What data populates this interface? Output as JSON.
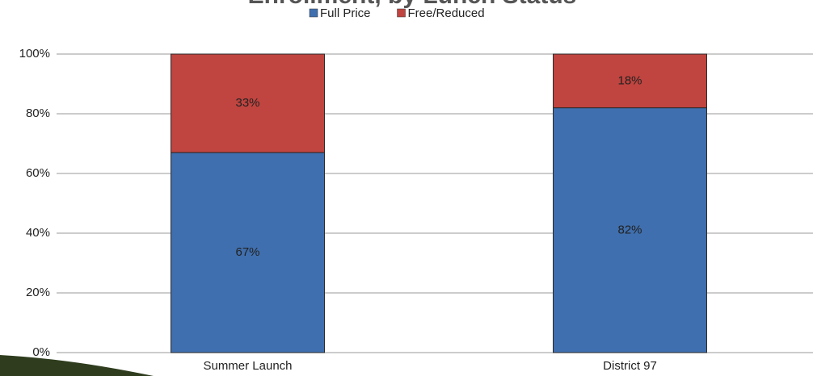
{
  "chart_data": {
    "type": "stacked_bar",
    "title": "Enrollment, by Lunch Status",
    "categories": [
      "Summer Launch",
      "District 97"
    ],
    "series": [
      {
        "name": "Full Price",
        "color": "#3f6fae",
        "values": [
          67,
          82
        ],
        "value_labels": [
          "67%",
          "82%"
        ]
      },
      {
        "name": "Free/Reduced",
        "color": "#c0443f",
        "values": [
          33,
          18
        ],
        "value_labels": [
          "33%",
          "18%"
        ]
      }
    ],
    "ylim": [
      0,
      100
    ],
    "yticks": [
      {
        "value": 0,
        "label": "0%"
      },
      {
        "value": 20,
        "label": "20%"
      },
      {
        "value": 40,
        "label": "40%"
      },
      {
        "value": 60,
        "label": "60%"
      },
      {
        "value": 80,
        "label": "80%"
      },
      {
        "value": 100,
        "label": "100%"
      }
    ],
    "grid": true,
    "legend": "top"
  }
}
